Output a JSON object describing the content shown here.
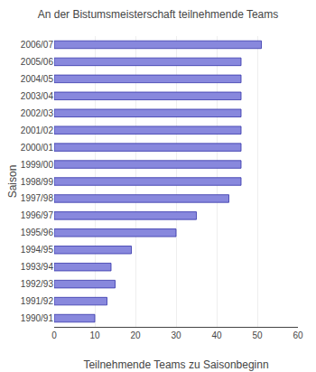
{
  "chart_data": {
    "type": "bar",
    "orientation": "horizontal",
    "title": "An der Bistumsmeisterschaft teilnehmende Teams",
    "xlabel": "Teilnehmende Teams zu Saisonbeginn",
    "ylabel": "Saison",
    "categories": [
      "2006/07",
      "2005/06",
      "2004/05",
      "2003/04",
      "2002/03",
      "2001/02",
      "2000/01",
      "1999/00",
      "1998/99",
      "1997/98",
      "1996/97",
      "1995/96",
      "1994/95",
      "1993/94",
      "1992/93",
      "1991/92",
      "1990/91"
    ],
    "values": [
      51,
      46,
      46,
      46,
      46,
      46,
      46,
      46,
      46,
      43,
      35,
      30,
      19,
      14,
      15,
      13,
      10
    ],
    "color": "#8888DD",
    "xlim": [
      0,
      60
    ],
    "xticks": [
      0,
      10,
      20,
      30,
      40,
      50,
      60
    ],
    "grid": true
  }
}
